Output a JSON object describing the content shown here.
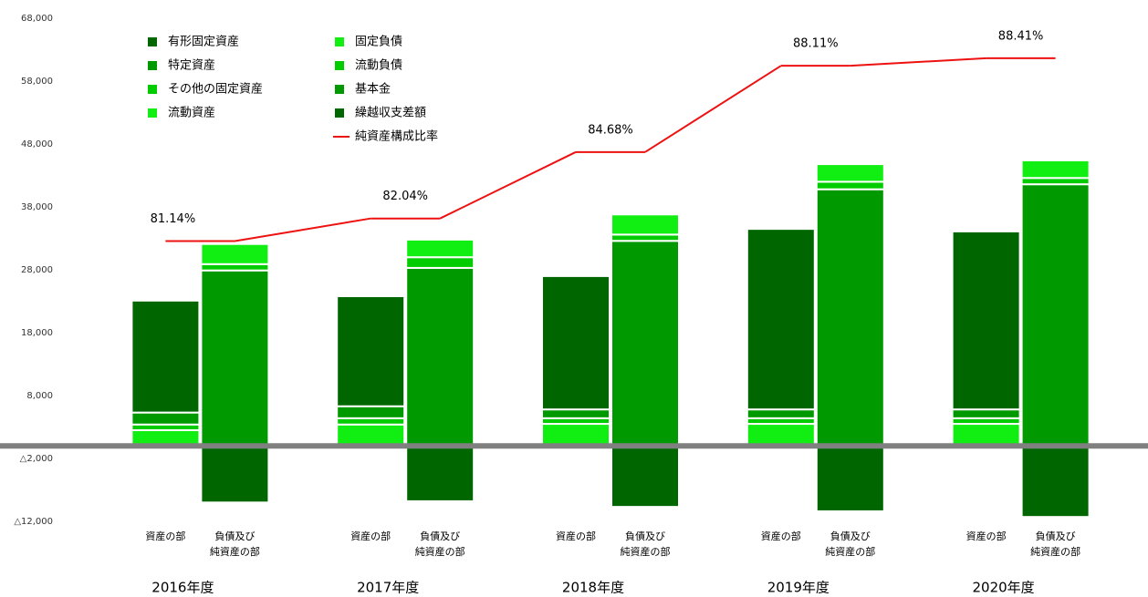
{
  "chart_data": {
    "type": "stacked-bar-line",
    "categories": [
      "2016年度",
      "2017年度",
      "2018年度",
      "2019年度",
      "2020年度"
    ],
    "sub_labels": [
      [
        "資産の部"
      ],
      [
        "負債及び",
        "純資産の部"
      ]
    ],
    "series": [
      {
        "name": "有形固定資産",
        "color": "#006600",
        "stack": 0,
        "values": [
          17800,
          17500,
          21200,
          28700,
          28300
        ]
      },
      {
        "name": "特定資産",
        "color": "#009900",
        "stack": 0,
        "values": [
          1900,
          1900,
          1400,
          1400,
          1400
        ]
      },
      {
        "name": "その他の固定資産",
        "color": "#00cc00",
        "stack": 0,
        "values": [
          900,
          1000,
          900,
          900,
          900
        ]
      },
      {
        "name": "流動資産",
        "color": "#11ee11",
        "stack": 0,
        "values": [
          2500,
          3400,
          3500,
          3500,
          3500
        ]
      },
      {
        "name": "固定負債",
        "color": "#11ee11",
        "stack": 1,
        "values": [
          3200,
          2800,
          3200,
          2800,
          2800
        ]
      },
      {
        "name": "流動負債",
        "color": "#00cc00",
        "stack": 1,
        "values": [
          1000,
          1700,
          1000,
          1200,
          1000
        ]
      },
      {
        "name": "基本金",
        "color": "#009900",
        "stack": 1,
        "values": [
          27900,
          28300,
          32600,
          40800,
          41600
        ]
      },
      {
        "name": "繰越収支差額",
        "color": "#006600",
        "stack": 1,
        "values": [
          -9000,
          -8800,
          -9700,
          -10400,
          -11300
        ]
      },
      {
        "name": "純資産構成比率",
        "color": "#ee1111",
        "type": "line",
        "axis": "y2",
        "values": [
          81.14,
          82.04,
          84.68,
          88.11,
          88.41
        ],
        "value_labels": [
          "81.14%",
          "82.04%",
          "84.68%",
          "88.11%",
          "88.41%"
        ]
      }
    ],
    "ylim": [
      -12000,
      68000
    ],
    "yticks": [
      {
        "value": -12000,
        "label": "△12,000"
      },
      {
        "value": -2000,
        "label": "△2,000"
      },
      {
        "value": 8000,
        "label": "8,000"
      },
      {
        "value": 18000,
        "label": "18,000"
      },
      {
        "value": 28000,
        "label": "28,000"
      },
      {
        "value": 38000,
        "label": "38,000"
      },
      {
        "value": 48000,
        "label": "48,000"
      },
      {
        "value": 58000,
        "label": "58,000"
      },
      {
        "value": 68000,
        "label": "68,000"
      }
    ],
    "y2lim": [
      70,
      90
    ],
    "zero_line_color": "#808080"
  }
}
